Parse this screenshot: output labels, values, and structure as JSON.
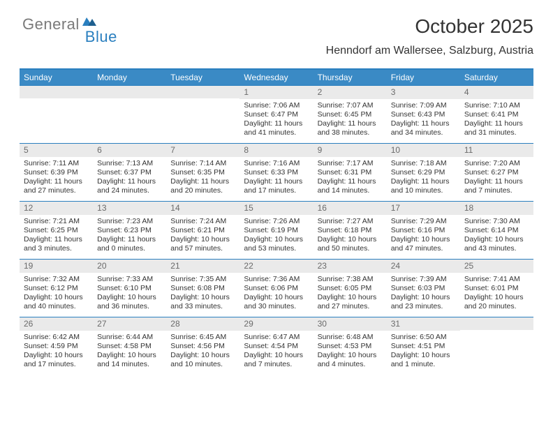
{
  "brand": {
    "word1": "General",
    "word2": "Blue"
  },
  "title": "October 2025",
  "location": "Henndorf am Wallersee, Salzburg, Austria",
  "colors": {
    "accent": "#3a8ac5",
    "rule": "#2a7fbf",
    "daybar": "#eaeaea",
    "daynum": "#6a6a6a",
    "text": "#333333",
    "logo_gray": "#7a7a7a",
    "logo_blue": "#2a7fbf",
    "background": "#ffffff"
  },
  "daysOfWeek": [
    "Sunday",
    "Monday",
    "Tuesday",
    "Wednesday",
    "Thursday",
    "Friday",
    "Saturday"
  ],
  "weeks": [
    [
      null,
      null,
      null,
      {
        "n": "1",
        "sunrise": "7:06 AM",
        "sunset": "6:47 PM",
        "daylight": "11 hours and 41 minutes."
      },
      {
        "n": "2",
        "sunrise": "7:07 AM",
        "sunset": "6:45 PM",
        "daylight": "11 hours and 38 minutes."
      },
      {
        "n": "3",
        "sunrise": "7:09 AM",
        "sunset": "6:43 PM",
        "daylight": "11 hours and 34 minutes."
      },
      {
        "n": "4",
        "sunrise": "7:10 AM",
        "sunset": "6:41 PM",
        "daylight": "11 hours and 31 minutes."
      }
    ],
    [
      {
        "n": "5",
        "sunrise": "7:11 AM",
        "sunset": "6:39 PM",
        "daylight": "11 hours and 27 minutes."
      },
      {
        "n": "6",
        "sunrise": "7:13 AM",
        "sunset": "6:37 PM",
        "daylight": "11 hours and 24 minutes."
      },
      {
        "n": "7",
        "sunrise": "7:14 AM",
        "sunset": "6:35 PM",
        "daylight": "11 hours and 20 minutes."
      },
      {
        "n": "8",
        "sunrise": "7:16 AM",
        "sunset": "6:33 PM",
        "daylight": "11 hours and 17 minutes."
      },
      {
        "n": "9",
        "sunrise": "7:17 AM",
        "sunset": "6:31 PM",
        "daylight": "11 hours and 14 minutes."
      },
      {
        "n": "10",
        "sunrise": "7:18 AM",
        "sunset": "6:29 PM",
        "daylight": "11 hours and 10 minutes."
      },
      {
        "n": "11",
        "sunrise": "7:20 AM",
        "sunset": "6:27 PM",
        "daylight": "11 hours and 7 minutes."
      }
    ],
    [
      {
        "n": "12",
        "sunrise": "7:21 AM",
        "sunset": "6:25 PM",
        "daylight": "11 hours and 3 minutes."
      },
      {
        "n": "13",
        "sunrise": "7:23 AM",
        "sunset": "6:23 PM",
        "daylight": "11 hours and 0 minutes."
      },
      {
        "n": "14",
        "sunrise": "7:24 AM",
        "sunset": "6:21 PM",
        "daylight": "10 hours and 57 minutes."
      },
      {
        "n": "15",
        "sunrise": "7:26 AM",
        "sunset": "6:19 PM",
        "daylight": "10 hours and 53 minutes."
      },
      {
        "n": "16",
        "sunrise": "7:27 AM",
        "sunset": "6:18 PM",
        "daylight": "10 hours and 50 minutes."
      },
      {
        "n": "17",
        "sunrise": "7:29 AM",
        "sunset": "6:16 PM",
        "daylight": "10 hours and 47 minutes."
      },
      {
        "n": "18",
        "sunrise": "7:30 AM",
        "sunset": "6:14 PM",
        "daylight": "10 hours and 43 minutes."
      }
    ],
    [
      {
        "n": "19",
        "sunrise": "7:32 AM",
        "sunset": "6:12 PM",
        "daylight": "10 hours and 40 minutes."
      },
      {
        "n": "20",
        "sunrise": "7:33 AM",
        "sunset": "6:10 PM",
        "daylight": "10 hours and 36 minutes."
      },
      {
        "n": "21",
        "sunrise": "7:35 AM",
        "sunset": "6:08 PM",
        "daylight": "10 hours and 33 minutes."
      },
      {
        "n": "22",
        "sunrise": "7:36 AM",
        "sunset": "6:06 PM",
        "daylight": "10 hours and 30 minutes."
      },
      {
        "n": "23",
        "sunrise": "7:38 AM",
        "sunset": "6:05 PM",
        "daylight": "10 hours and 27 minutes."
      },
      {
        "n": "24",
        "sunrise": "7:39 AM",
        "sunset": "6:03 PM",
        "daylight": "10 hours and 23 minutes."
      },
      {
        "n": "25",
        "sunrise": "7:41 AM",
        "sunset": "6:01 PM",
        "daylight": "10 hours and 20 minutes."
      }
    ],
    [
      {
        "n": "26",
        "sunrise": "6:42 AM",
        "sunset": "4:59 PM",
        "daylight": "10 hours and 17 minutes."
      },
      {
        "n": "27",
        "sunrise": "6:44 AM",
        "sunset": "4:58 PM",
        "daylight": "10 hours and 14 minutes."
      },
      {
        "n": "28",
        "sunrise": "6:45 AM",
        "sunset": "4:56 PM",
        "daylight": "10 hours and 10 minutes."
      },
      {
        "n": "29",
        "sunrise": "6:47 AM",
        "sunset": "4:54 PM",
        "daylight": "10 hours and 7 minutes."
      },
      {
        "n": "30",
        "sunrise": "6:48 AM",
        "sunset": "4:53 PM",
        "daylight": "10 hours and 4 minutes."
      },
      {
        "n": "31",
        "sunrise": "6:50 AM",
        "sunset": "4:51 PM",
        "daylight": "10 hours and 1 minute."
      },
      null
    ]
  ],
  "labels": {
    "sunrise": "Sunrise:",
    "sunset": "Sunset:",
    "daylight": "Daylight:"
  }
}
